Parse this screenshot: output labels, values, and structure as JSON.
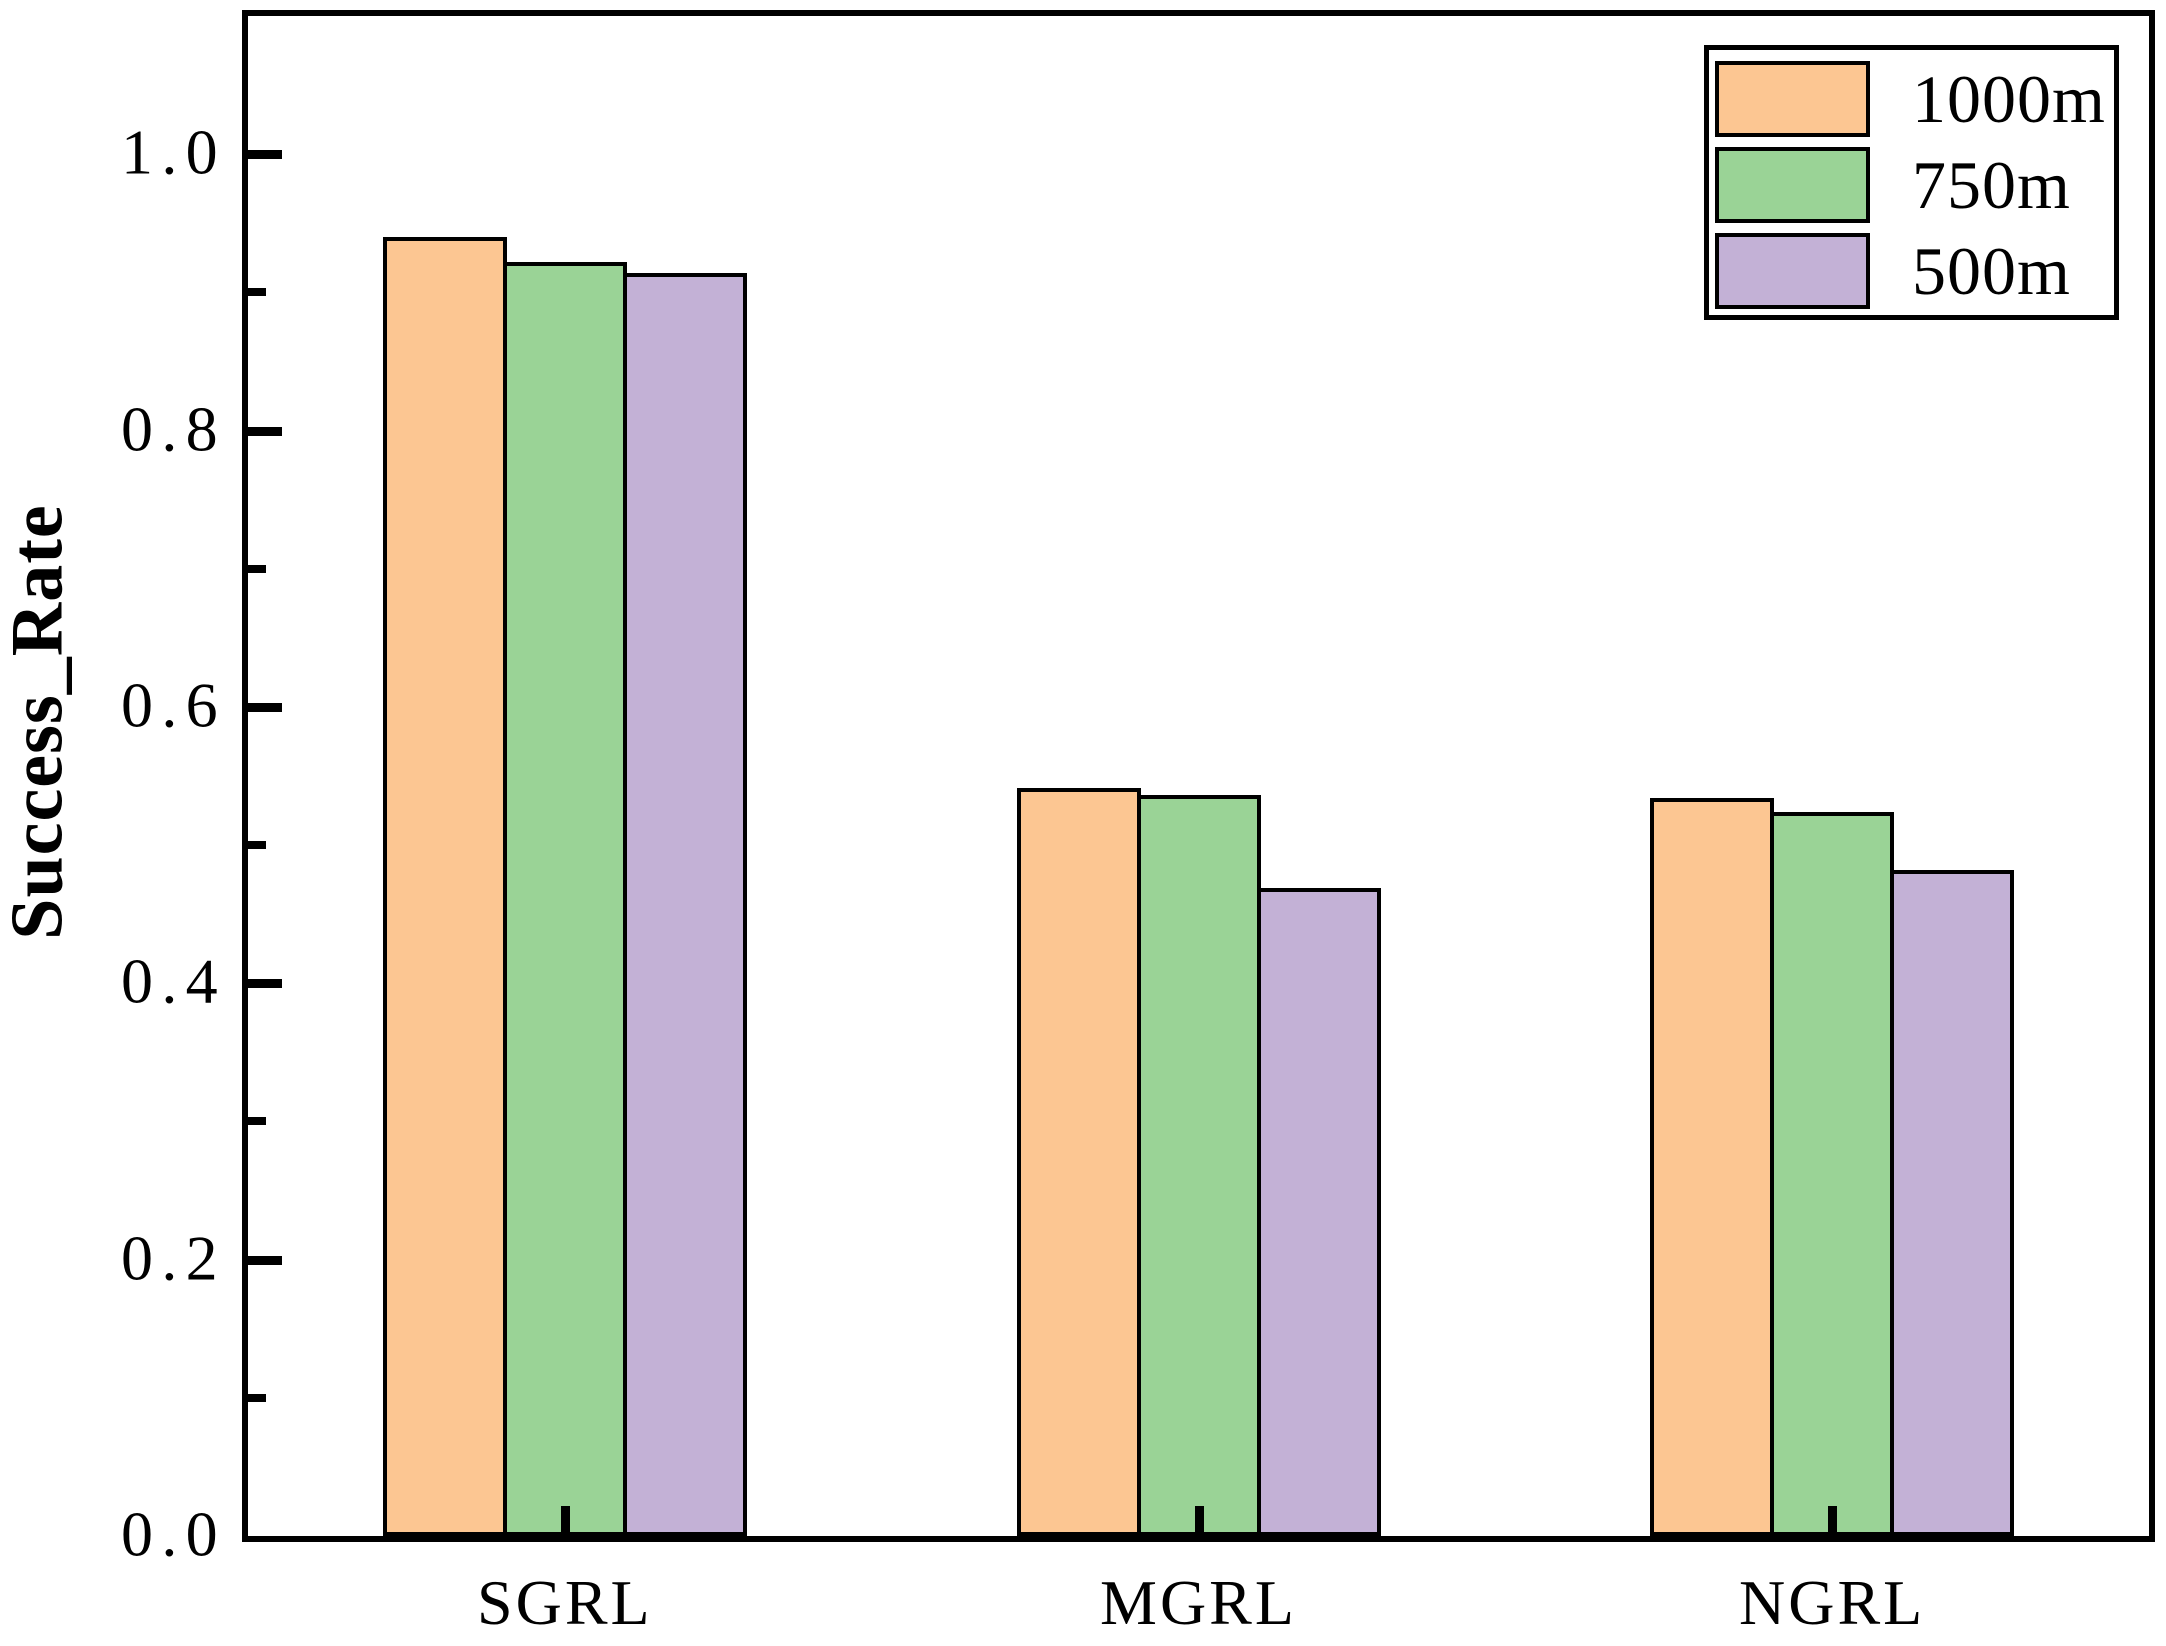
{
  "chart_data": {
    "type": "bar",
    "title": "",
    "xlabel": "",
    "ylabel": "Success_Rate",
    "categories": [
      "SGRL",
      "MGRL",
      "NGRL"
    ],
    "series": [
      {
        "name": "1000m",
        "color": "#FCC692",
        "values": [
          0.94,
          0.541,
          0.534
        ]
      },
      {
        "name": "750m",
        "color": "#9AD396",
        "values": [
          0.922,
          0.536,
          0.524
        ]
      },
      {
        "name": "500m",
        "color": "#C3B1D6",
        "values": [
          0.914,
          0.469,
          0.482
        ]
      }
    ],
    "ylim": [
      0,
      1.1
    ],
    "yticks": [
      {
        "value": 0.0,
        "label": "0.0"
      },
      {
        "value": 0.2,
        "label": "0.2"
      },
      {
        "value": 0.4,
        "label": "0.4"
      },
      {
        "value": 0.6,
        "label": "0.6"
      },
      {
        "value": 0.8,
        "label": "0.8"
      },
      {
        "value": 1.0,
        "label": "1.0"
      }
    ],
    "yticks_minor": [
      0.1,
      0.3,
      0.5,
      0.7,
      0.9
    ],
    "grid": false,
    "legend_position": "upper right",
    "bar_edge_color": "#000000",
    "axis_color": "#000000",
    "background_color": "#ffffff"
  }
}
